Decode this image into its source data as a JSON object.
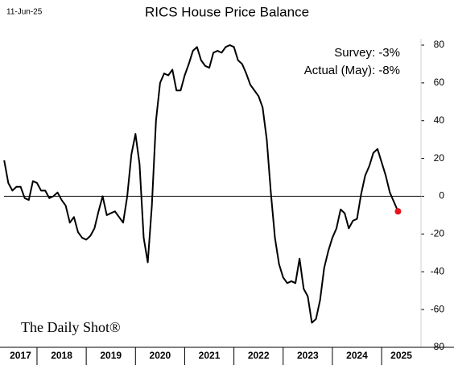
{
  "date": "11-Jun-25",
  "watermark": "The Daily Shot®",
  "chart_data": {
    "type": "line",
    "title": "RICS House Price Balance",
    "annotations": [
      "Survey:  -3%",
      "Actual (May):  -8%"
    ],
    "year_labels": [
      "2017",
      "2018",
      "2019",
      "2020",
      "2021",
      "2022",
      "2023",
      "2024",
      "2025"
    ],
    "xlim": [
      2017.33,
      2025.8
    ],
    "xticks": [
      2018,
      2019,
      2020,
      2021,
      2022,
      2023,
      2024,
      2025
    ],
    "ylim": [
      -80,
      80
    ],
    "yticks": [
      -80,
      -60,
      -40,
      -20,
      0,
      20,
      40,
      60,
      80
    ],
    "hline": 0,
    "end_marker_color": "#e8141b",
    "series": [
      {
        "color": "#000000",
        "x": [
          2017.333,
          2017.417,
          2017.5,
          2017.583,
          2017.667,
          2017.75,
          2017.833,
          2017.917,
          2018.0,
          2018.083,
          2018.167,
          2018.25,
          2018.333,
          2018.417,
          2018.5,
          2018.583,
          2018.667,
          2018.75,
          2018.833,
          2018.917,
          2019.0,
          2019.083,
          2019.167,
          2019.25,
          2019.333,
          2019.417,
          2019.5,
          2019.583,
          2019.667,
          2019.75,
          2019.833,
          2019.917,
          2020.0,
          2020.083,
          2020.167,
          2020.25,
          2020.333,
          2020.417,
          2020.5,
          2020.583,
          2020.667,
          2020.75,
          2020.833,
          2020.917,
          2021.0,
          2021.083,
          2021.167,
          2021.25,
          2021.333,
          2021.417,
          2021.5,
          2021.583,
          2021.667,
          2021.75,
          2021.833,
          2021.917,
          2022.0,
          2022.083,
          2022.167,
          2022.25,
          2022.333,
          2022.417,
          2022.5,
          2022.583,
          2022.667,
          2022.75,
          2022.833,
          2022.917,
          2023.0,
          2023.083,
          2023.167,
          2023.25,
          2023.333,
          2023.417,
          2023.5,
          2023.583,
          2023.667,
          2023.75,
          2023.833,
          2023.917,
          2024.0,
          2024.083,
          2024.167,
          2024.25,
          2024.333,
          2024.417,
          2024.5,
          2024.583,
          2024.667,
          2024.75,
          2024.833,
          2024.917,
          2025.0,
          2025.083,
          2025.167,
          2025.25,
          2025.333
        ],
        "values": [
          19,
          7,
          3,
          5,
          5,
          -1,
          -2,
          8,
          7,
          3,
          3,
          -1,
          0,
          2,
          -2,
          -5,
          -14,
          -11,
          -19,
          -22,
          -23,
          -21,
          -17,
          -8,
          0,
          -10,
          -9,
          -8,
          -11,
          -14,
          0,
          22,
          33,
          17,
          -22,
          -35,
          -5,
          40,
          60,
          65,
          64,
          67,
          56,
          56,
          64,
          70,
          77,
          79,
          72,
          69,
          68,
          76,
          77,
          76,
          79,
          80,
          79,
          72,
          70,
          65,
          59,
          56,
          53,
          47,
          30,
          2,
          -22,
          -36,
          -43,
          -46,
          -45,
          -46,
          -33,
          -49,
          -53,
          -67,
          -65,
          -55,
          -38,
          -29,
          -22,
          -17,
          -7,
          -9,
          -17,
          -13,
          -12,
          1,
          11,
          16,
          23,
          25,
          18,
          11,
          2,
          -3,
          -8
        ]
      }
    ]
  }
}
